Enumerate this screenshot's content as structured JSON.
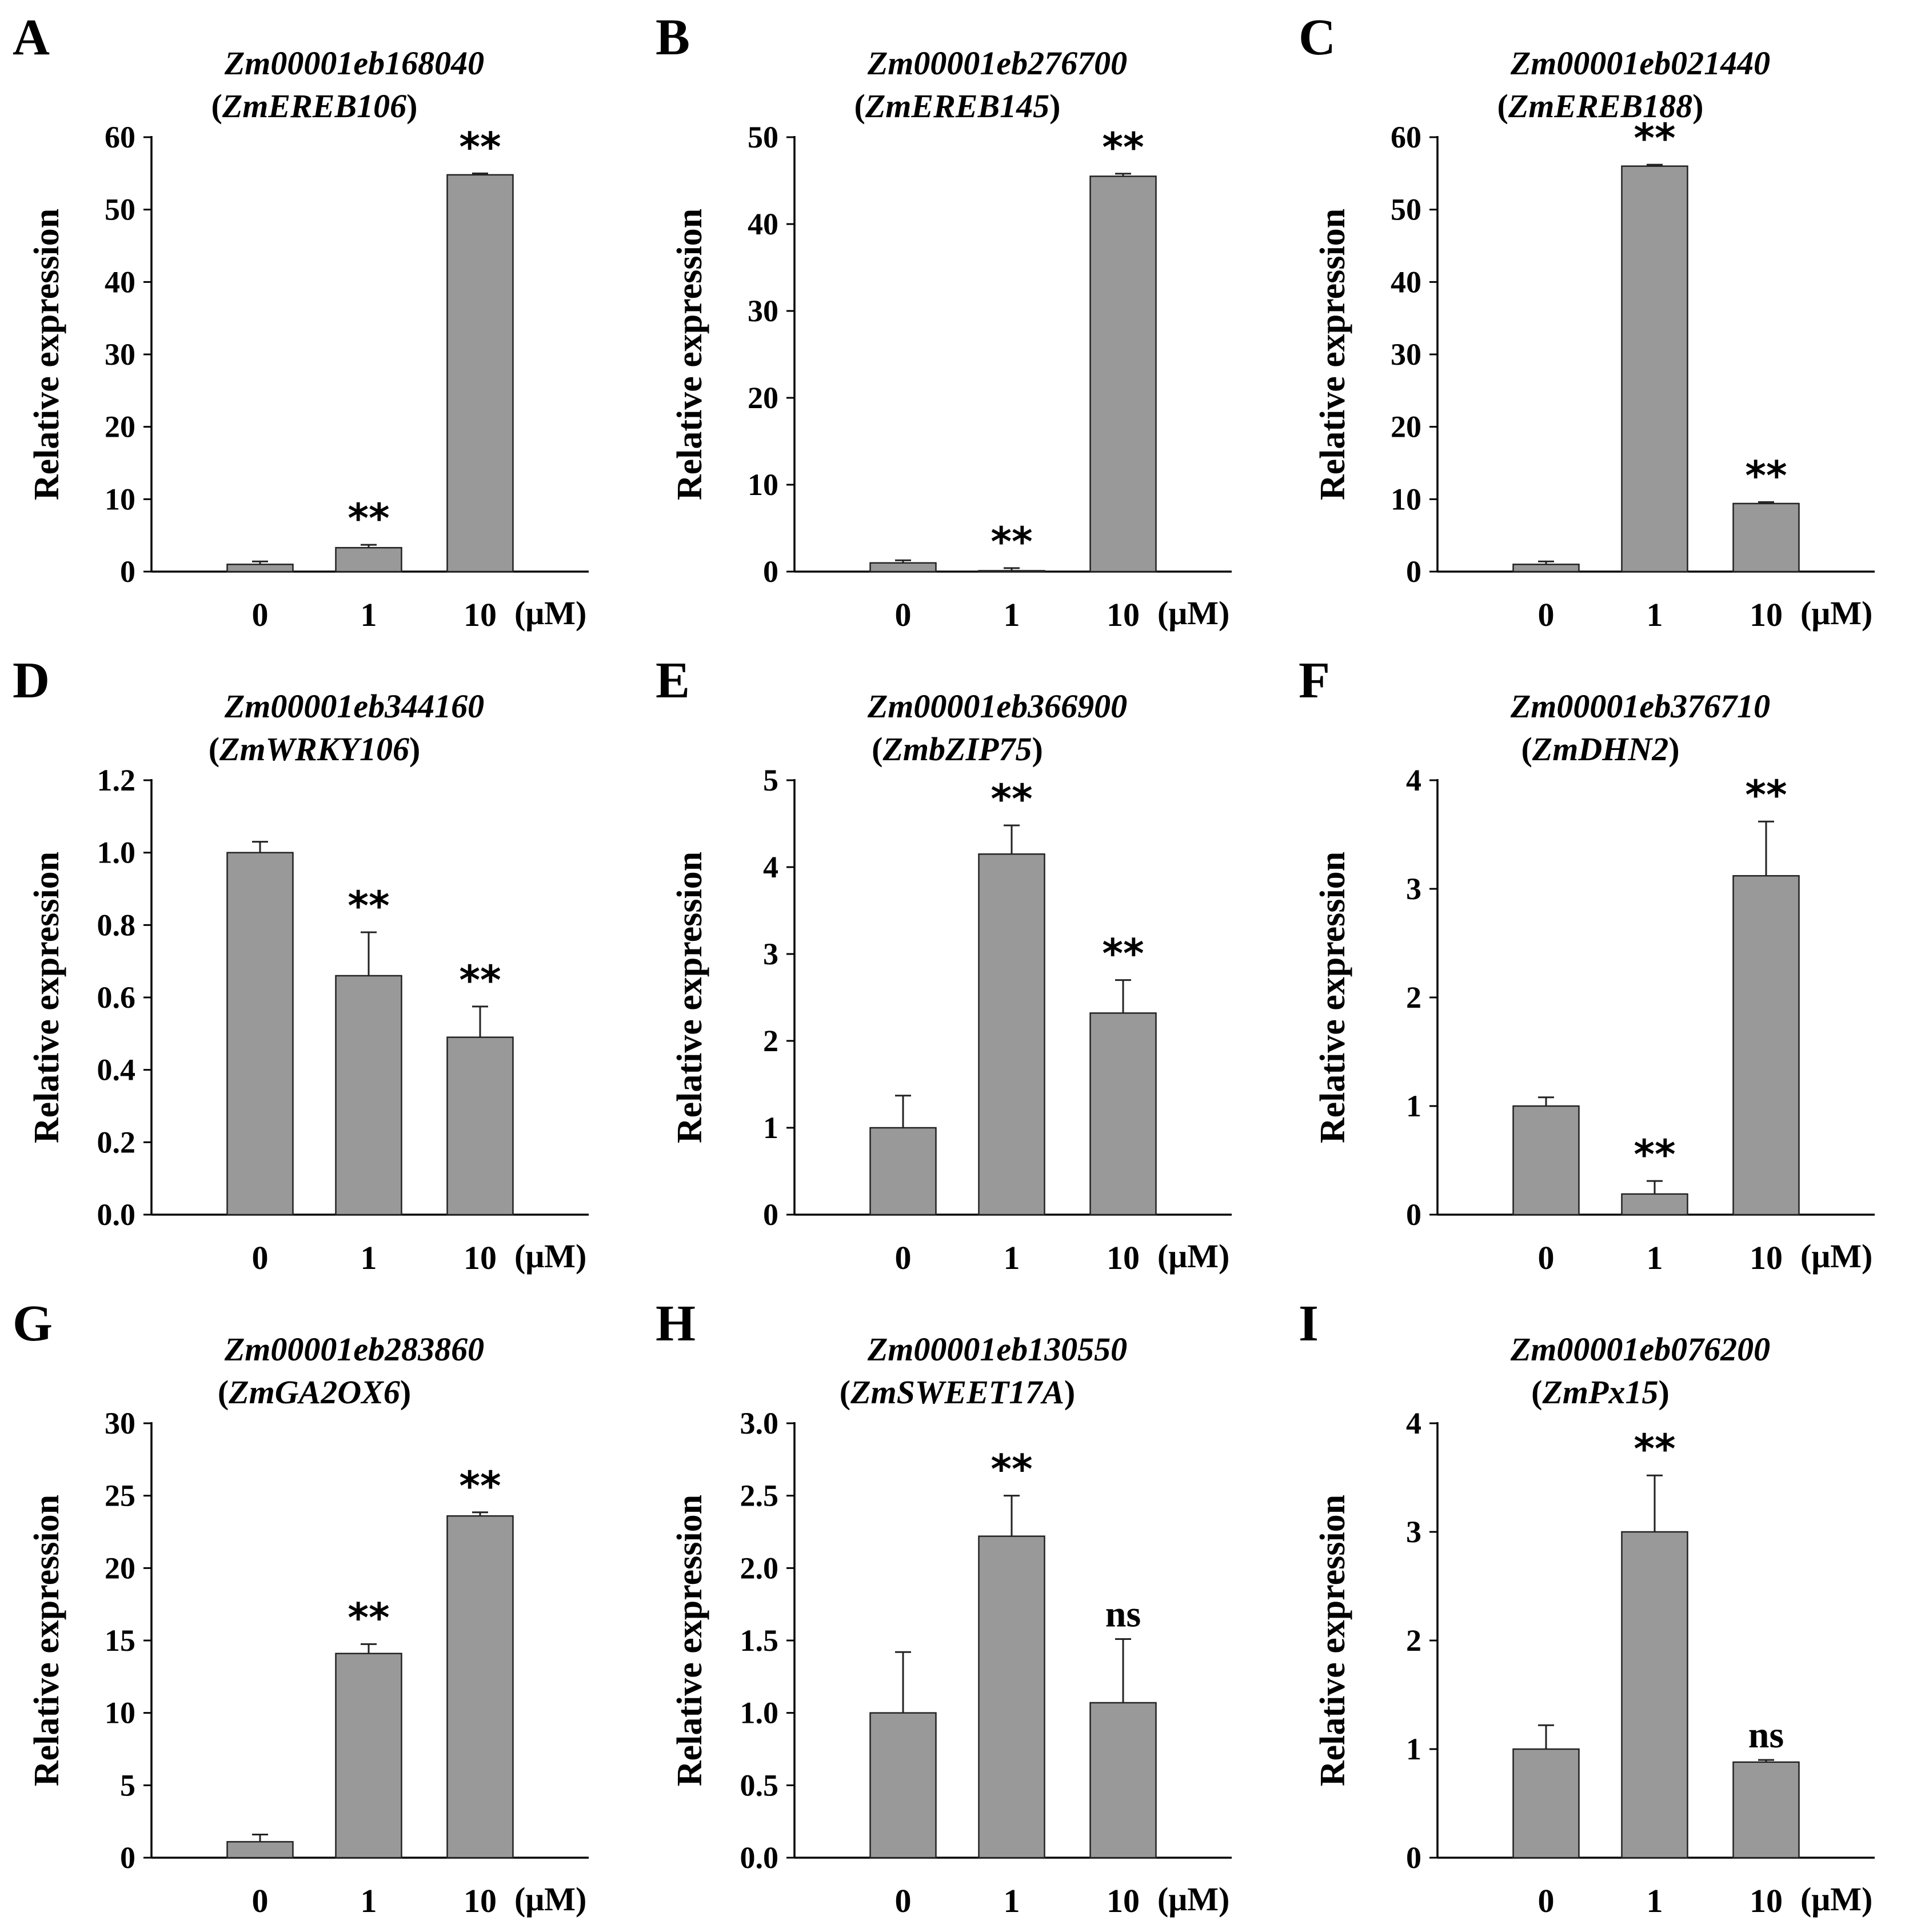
{
  "x_unit": "(μM)",
  "chart_data": [
    {
      "panel": "A",
      "type": "bar",
      "title": "Zm00001eb168040",
      "subtitle": "ZmEREB106",
      "ylabel": "Relative expression",
      "categories": [
        "0",
        "1",
        "10"
      ],
      "values": [
        1.0,
        3.3,
        54.8
      ],
      "errors": [
        0.4,
        0.4,
        0.2
      ],
      "significance": [
        "",
        "**",
        "**"
      ],
      "ylim": [
        0,
        60
      ],
      "yticks": [
        "0",
        "10",
        "20",
        "30",
        "40",
        "50",
        "60"
      ]
    },
    {
      "panel": "B",
      "type": "bar",
      "title": "Zm00001eb276700",
      "subtitle": "ZmEREB145",
      "ylabel": "Relative expression",
      "categories": [
        "0",
        "1",
        "10"
      ],
      "values": [
        1.0,
        0.1,
        45.5
      ],
      "errors": [
        0.3,
        0.3,
        0.3
      ],
      "significance": [
        "",
        "**",
        "**"
      ],
      "ylim": [
        0,
        50
      ],
      "yticks": [
        "0",
        "10",
        "20",
        "30",
        "40",
        "50"
      ]
    },
    {
      "panel": "C",
      "type": "bar",
      "title": "Zm00001eb021440",
      "subtitle": "ZmEREB188",
      "ylabel": "Relative expression",
      "categories": [
        "0",
        "1",
        "10"
      ],
      "values": [
        1.0,
        56.0,
        9.4
      ],
      "errors": [
        0.4,
        0.2,
        0.2
      ],
      "significance": [
        "",
        "**",
        "**"
      ],
      "ylim": [
        0,
        60
      ],
      "yticks": [
        "0",
        "10",
        "20",
        "30",
        "40",
        "50",
        "60"
      ]
    },
    {
      "panel": "D",
      "type": "bar",
      "title": "Zm00001eb344160",
      "subtitle": "ZmWRKY106",
      "ylabel": "Relative expression",
      "categories": [
        "0",
        "1",
        "10"
      ],
      "values": [
        1.0,
        0.66,
        0.49
      ],
      "errors": [
        0.03,
        0.12,
        0.085
      ],
      "significance": [
        "",
        "**",
        "**"
      ],
      "ylim": [
        0,
        1.2
      ],
      "yticks": [
        "0.0",
        "0.2",
        "0.4",
        "0.6",
        "0.8",
        "1.0",
        "1.2"
      ]
    },
    {
      "panel": "E",
      "type": "bar",
      "title": "Zm00001eb366900",
      "subtitle": "ZmbZIP75",
      "ylabel": "Relative expression",
      "categories": [
        "0",
        "1",
        "10"
      ],
      "values": [
        1.0,
        4.15,
        2.32
      ],
      "errors": [
        0.37,
        0.33,
        0.38
      ],
      "significance": [
        "",
        "**",
        "**"
      ],
      "ylim": [
        0,
        5
      ],
      "yticks": [
        "0",
        "1",
        "2",
        "3",
        "4",
        "5"
      ]
    },
    {
      "panel": "F",
      "type": "bar",
      "title": "Zm00001eb376710",
      "subtitle": "ZmDHN2",
      "ylabel": "Relative expression",
      "categories": [
        "0",
        "1",
        "10"
      ],
      "values": [
        1.0,
        0.19,
        3.12
      ],
      "errors": [
        0.08,
        0.12,
        0.5
      ],
      "significance": [
        "",
        "**",
        "**"
      ],
      "ylim": [
        0,
        4
      ],
      "yticks": [
        "0",
        "1",
        "2",
        "3",
        "4"
      ]
    },
    {
      "panel": "G",
      "type": "bar",
      "title": "Zm00001eb283860",
      "subtitle": "ZmGA2OX6",
      "ylabel": "Relative expression",
      "categories": [
        "0",
        "1",
        "10"
      ],
      "values": [
        1.1,
        14.1,
        23.6
      ],
      "errors": [
        0.5,
        0.65,
        0.25
      ],
      "significance": [
        "",
        "**",
        "**"
      ],
      "ylim": [
        0,
        30
      ],
      "yticks": [
        "0",
        "5",
        "10",
        "15",
        "20",
        "25",
        "30"
      ]
    },
    {
      "panel": "H",
      "type": "bar",
      "title": "Zm00001eb130550",
      "subtitle": "ZmSWEET17A",
      "ylabel": "Relative expression",
      "categories": [
        "0",
        "1",
        "10"
      ],
      "values": [
        1.0,
        2.22,
        1.07
      ],
      "errors": [
        0.42,
        0.28,
        0.44
      ],
      "significance": [
        "",
        "**",
        "ns"
      ],
      "ylim": [
        0,
        3.0
      ],
      "yticks": [
        "0.0",
        "0.5",
        "1.0",
        "1.5",
        "2.0",
        "2.5",
        "3.0"
      ]
    },
    {
      "panel": "I",
      "type": "bar",
      "title": "Zm00001eb076200",
      "subtitle": "ZmPx15",
      "ylabel": "Relative expression",
      "categories": [
        "0",
        "1",
        "10"
      ],
      "values": [
        1.0,
        3.0,
        0.88
      ],
      "errors": [
        0.22,
        0.52,
        0.02
      ],
      "significance": [
        "",
        "**",
        "ns"
      ],
      "ylim": [
        0,
        4
      ],
      "yticks": [
        "0",
        "1",
        "2",
        "3",
        "4"
      ]
    }
  ]
}
